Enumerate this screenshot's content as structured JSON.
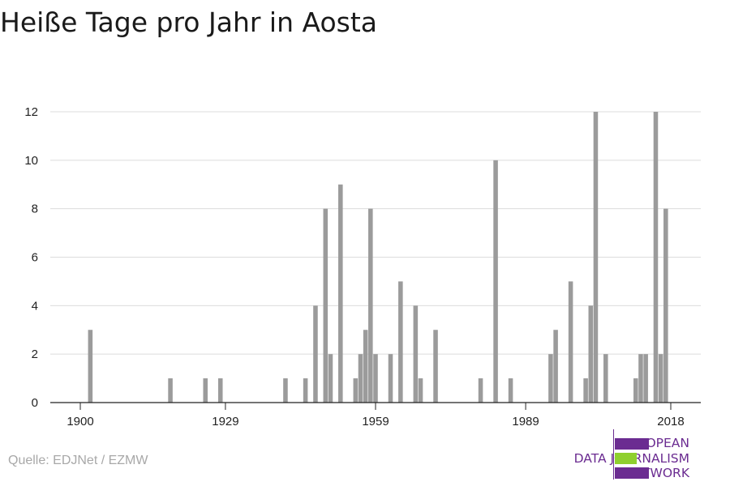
{
  "title": "Heiße Tage pro Jahr in Aosta",
  "source": "Quelle: EDJNet / EZMW",
  "logo": {
    "lines": [
      "EUROPEAN",
      "DATA JOURNALISM",
      "NETWORK"
    ],
    "colors": {
      "purple": "#6b2c91",
      "green": "#8fd02e"
    }
  },
  "colors": {
    "bar": "#9b9b9b",
    "grid": "#dcdcdc",
    "axis": "#222222",
    "text": "#222222"
  },
  "chart_data": {
    "type": "bar",
    "title": "Heiße Tage pro Jahr in Aosta",
    "xlabel": "",
    "ylabel": "",
    "xlim": [
      1894,
      2024
    ],
    "ylim": [
      0,
      12
    ],
    "yticks": [
      0,
      2,
      4,
      6,
      8,
      10,
      12
    ],
    "xticks": [
      1900,
      1929,
      1959,
      1989,
      2018
    ],
    "grid": true,
    "legend": "none",
    "points": [
      {
        "x": 1902,
        "y": 3
      },
      {
        "x": 1918,
        "y": 1
      },
      {
        "x": 1925,
        "y": 1
      },
      {
        "x": 1928,
        "y": 1
      },
      {
        "x": 1941,
        "y": 1
      },
      {
        "x": 1945,
        "y": 1
      },
      {
        "x": 1947,
        "y": 4
      },
      {
        "x": 1949,
        "y": 8
      },
      {
        "x": 1950,
        "y": 2
      },
      {
        "x": 1952,
        "y": 9
      },
      {
        "x": 1955,
        "y": 1
      },
      {
        "x": 1956,
        "y": 2
      },
      {
        "x": 1957,
        "y": 3
      },
      {
        "x": 1958,
        "y": 8
      },
      {
        "x": 1959,
        "y": 2
      },
      {
        "x": 1962,
        "y": 2
      },
      {
        "x": 1964,
        "y": 5
      },
      {
        "x": 1967,
        "y": 4
      },
      {
        "x": 1968,
        "y": 1
      },
      {
        "x": 1971,
        "y": 3
      },
      {
        "x": 1980,
        "y": 1
      },
      {
        "x": 1983,
        "y": 10
      },
      {
        "x": 1986,
        "y": 1
      },
      {
        "x": 1994,
        "y": 2
      },
      {
        "x": 1995,
        "y": 3
      },
      {
        "x": 1998,
        "y": 5
      },
      {
        "x": 2001,
        "y": 1
      },
      {
        "x": 2002,
        "y": 4
      },
      {
        "x": 2003,
        "y": 12
      },
      {
        "x": 2005,
        "y": 2
      },
      {
        "x": 2011,
        "y": 1
      },
      {
        "x": 2012,
        "y": 2
      },
      {
        "x": 2013,
        "y": 2
      },
      {
        "x": 2015,
        "y": 12
      },
      {
        "x": 2016,
        "y": 2
      },
      {
        "x": 2017,
        "y": 8
      }
    ]
  }
}
